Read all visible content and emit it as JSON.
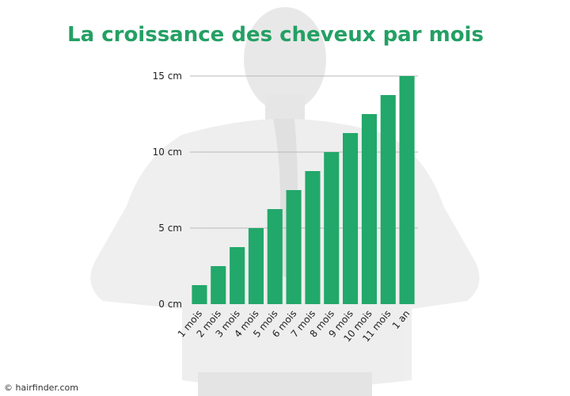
{
  "colors": {
    "bar": "#22a86a",
    "title": "#24a064",
    "grid": "#b8b8b8",
    "background_figure": "#ececec"
  },
  "background": {
    "description_icon": "woman-back-photo"
  },
  "credit": "© hairfinder.com",
  "chart_data": {
    "type": "bar",
    "title": "La croissance des cheveux par mois",
    "categories": [
      "1 mois",
      "2 mois",
      "3 mois",
      "4 mois",
      "5 mois",
      "6 mois",
      "7 mois",
      "8 mois",
      "9 mois",
      "10 mois",
      "11 mois",
      "1 an"
    ],
    "values": [
      1.25,
      2.5,
      3.75,
      5,
      6.25,
      7.5,
      8.75,
      10,
      11.25,
      12.5,
      13.75,
      15
    ],
    "ylim": [
      0,
      15
    ],
    "yticks": [
      0,
      5,
      10,
      15
    ],
    "ytick_labels": [
      "0 cm",
      "5 cm",
      "10 cm",
      "15 cm"
    ],
    "xlabel": "",
    "ylabel": "",
    "grid": true
  }
}
